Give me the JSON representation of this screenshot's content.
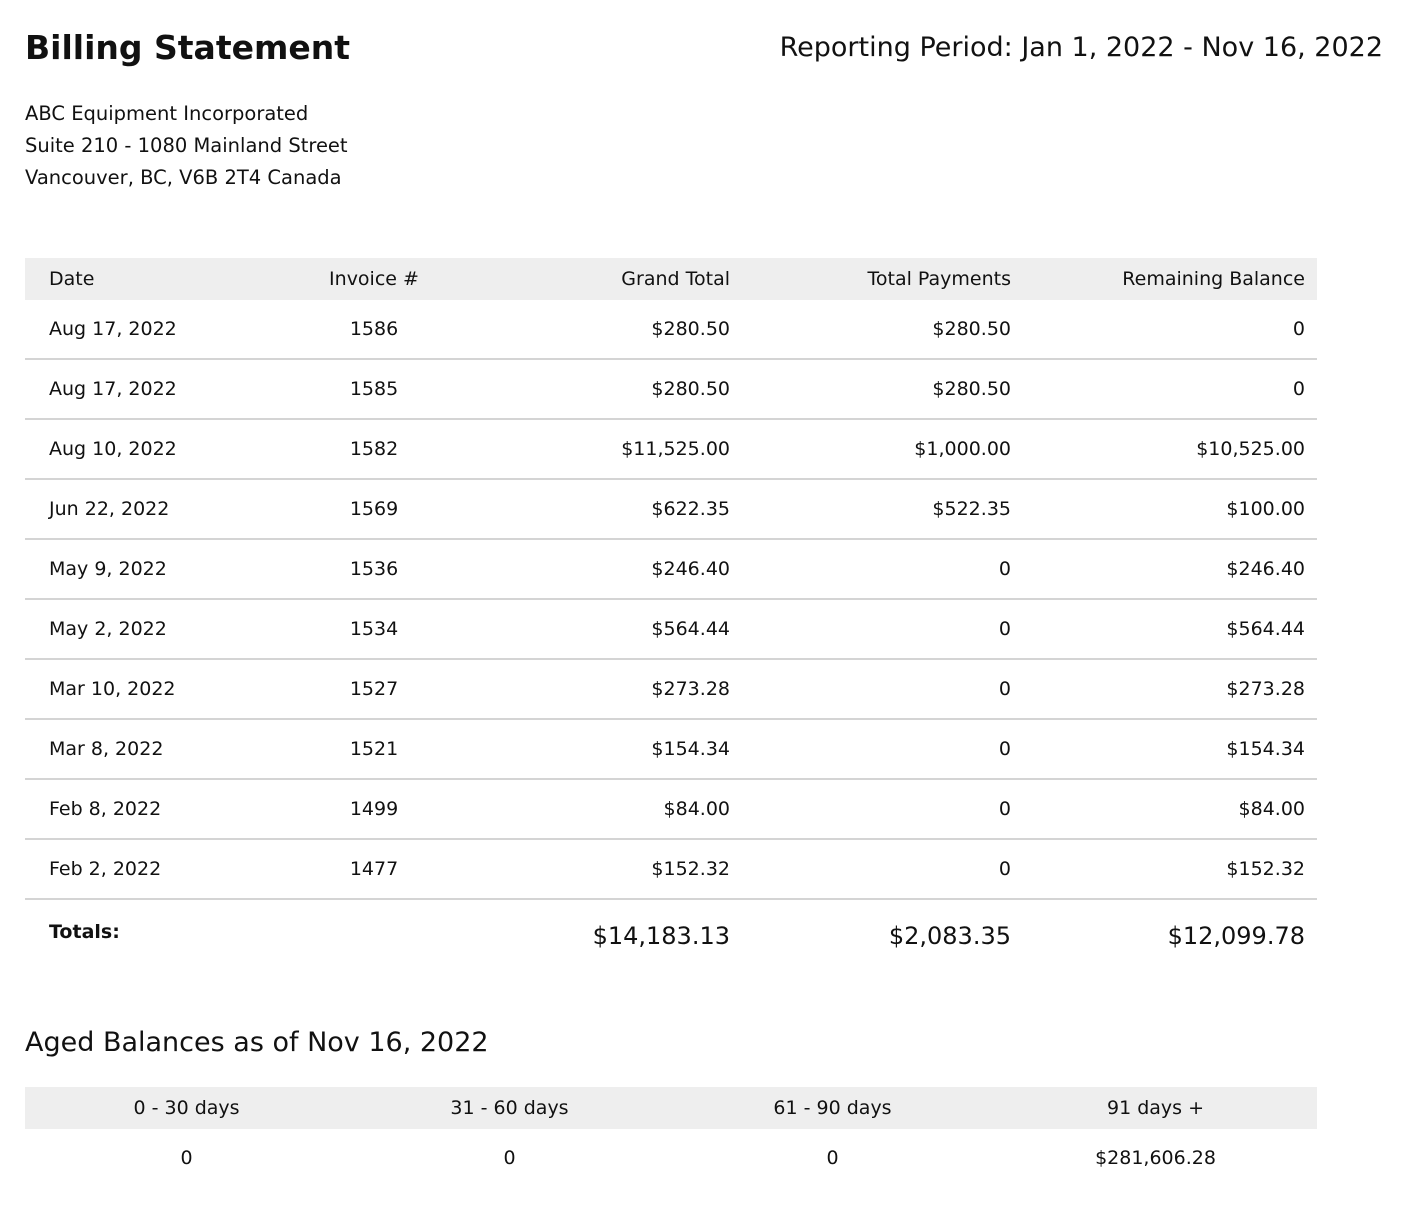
{
  "header": {
    "title": "Billing Statement",
    "period": "Reporting Period: Jan 1, 2022 - Nov 16, 2022",
    "address": [
      "ABC Equipment Incorporated",
      "Suite 210 - 1080 Mainland Street",
      "Vancouver, BC, V6B 2T4 Canada"
    ]
  },
  "table": {
    "columns": [
      "Date",
      "Invoice #",
      "Grand Total",
      "Total Payments",
      "Remaining Balance"
    ],
    "rows": [
      [
        "Aug 17, 2022",
        "1586",
        "$280.50",
        "$280.50",
        "0"
      ],
      [
        "Aug 17, 2022",
        "1585",
        "$280.50",
        "$280.50",
        "0"
      ],
      [
        "Aug 10, 2022",
        "1582",
        "$11,525.00",
        "$1,000.00",
        "$10,525.00"
      ],
      [
        "Jun 22, 2022",
        "1569",
        "$622.35",
        "$522.35",
        "$100.00"
      ],
      [
        "May 9, 2022",
        "1536",
        "$246.40",
        "0",
        "$246.40"
      ],
      [
        "May 2, 2022",
        "1534",
        "$564.44",
        "0",
        "$564.44"
      ],
      [
        "Mar 10, 2022",
        "1527",
        "$273.28",
        "0",
        "$273.28"
      ],
      [
        "Mar 8, 2022",
        "1521",
        "$154.34",
        "0",
        "$154.34"
      ],
      [
        "Feb 8, 2022",
        "1499",
        "$84.00",
        "0",
        "$84.00"
      ],
      [
        "Feb 2, 2022",
        "1477",
        "$152.32",
        "0",
        "$152.32"
      ]
    ],
    "totals": {
      "label": "Totals:",
      "grand_total": "$14,183.13",
      "total_payments": "$2,083.35",
      "remaining_balance": "$12,099.78"
    }
  },
  "aged": {
    "title": "Aged Balances as of Nov 16, 2022",
    "columns": [
      "0 - 30 days",
      "31 - 60 days",
      "61 - 90 days",
      "91 days +"
    ],
    "values": [
      "0",
      "0",
      "0",
      "$281,606.28"
    ]
  }
}
